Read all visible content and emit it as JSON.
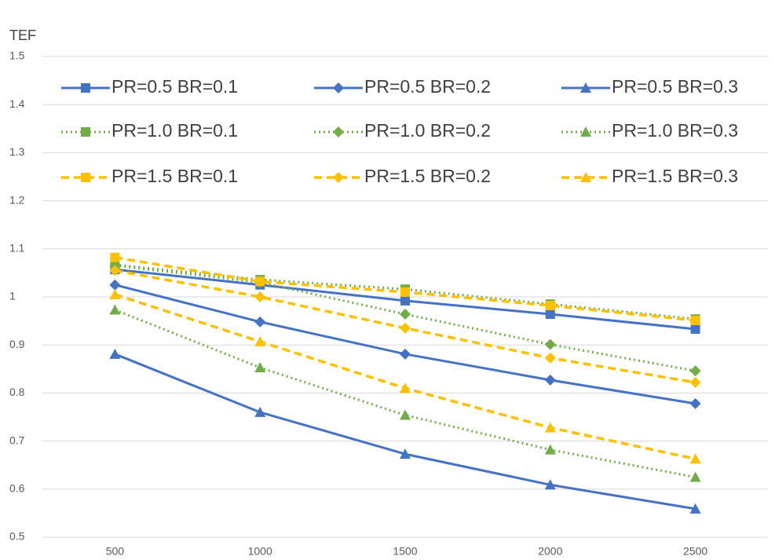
{
  "chart_data": {
    "type": "line",
    "y_label": "TEF",
    "categories": [
      "500",
      "1000",
      "1500",
      "2000",
      "2500"
    ],
    "ylim": [
      0.5,
      1.5
    ],
    "yticks": [
      0.5,
      0.6,
      0.7,
      0.8,
      0.9,
      1,
      1.1,
      1.2,
      1.3,
      1.4,
      1.5
    ],
    "grid": true,
    "series": [
      {
        "name": "PR=0.5 BR=0.1",
        "color": "#4472c4",
        "marker": "square",
        "dash": "solid",
        "values": [
          1.057,
          1.025,
          0.992,
          0.964,
          0.933
        ]
      },
      {
        "name": "PR=0.5 BR=0.2",
        "color": "#4472c4",
        "marker": "diamond",
        "dash": "solid",
        "values": [
          1.025,
          0.948,
          0.881,
          0.827,
          0.778
        ]
      },
      {
        "name": "PR=0.5 BR=0.3",
        "color": "#4472c4",
        "marker": "triangle",
        "dash": "solid",
        "values": [
          0.881,
          0.76,
          0.673,
          0.609,
          0.559
        ]
      },
      {
        "name": "PR=1.0 BR=0.1",
        "color": "#70ad47",
        "marker": "square",
        "dash": "dotted",
        "values": [
          1.067,
          1.036,
          1.016,
          0.985,
          0.954
        ]
      },
      {
        "name": "PR=1.0 BR=0.2",
        "color": "#70ad47",
        "marker": "diamond",
        "dash": "dotted",
        "values": [
          1.065,
          1.03,
          0.964,
          0.901,
          0.846
        ]
      },
      {
        "name": "PR=1.0 BR=0.3",
        "color": "#70ad47",
        "marker": "triangle",
        "dash": "dotted",
        "values": [
          0.973,
          0.853,
          0.754,
          0.682,
          0.625
        ]
      },
      {
        "name": "PR=1.5 BR=0.1",
        "color": "#ffc000",
        "marker": "square",
        "dash": "dashed",
        "values": [
          1.082,
          1.032,
          1.01,
          0.982,
          0.951
        ]
      },
      {
        "name": "PR=1.5 BR=0.2",
        "color": "#ffc000",
        "marker": "diamond",
        "dash": "dashed",
        "values": [
          1.055,
          1.0,
          0.935,
          0.873,
          0.822
        ]
      },
      {
        "name": "PR=1.5 BR=0.3",
        "color": "#ffc000",
        "marker": "triangle",
        "dash": "dashed",
        "values": [
          1.005,
          0.907,
          0.81,
          0.728,
          0.663
        ]
      }
    ]
  }
}
